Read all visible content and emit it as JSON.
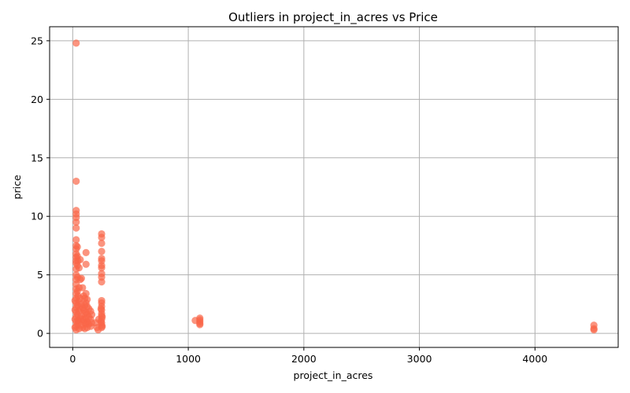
{
  "chart_data": {
    "type": "scatter",
    "title": "Outliers in project_in_acres vs Price",
    "xlabel": "project_in_acres",
    "ylabel": "price",
    "xlim": [
      -200,
      4720
    ],
    "ylim": [
      -1.2,
      26.2
    ],
    "xticks": [
      0,
      1000,
      2000,
      3000,
      4000
    ],
    "yticks": [
      0,
      5,
      10,
      15,
      20,
      25
    ],
    "grid": true,
    "color": "#fa6648",
    "points": [
      [
        30,
        24.8
      ],
      [
        30,
        13.0
      ],
      [
        30,
        10.5
      ],
      [
        30,
        10.2
      ],
      [
        30,
        9.9
      ],
      [
        30,
        9.5
      ],
      [
        30,
        9.0
      ],
      [
        30,
        8.0
      ],
      [
        30,
        7.5
      ],
      [
        30,
        7.2
      ],
      [
        30,
        6.8
      ],
      [
        30,
        6.5
      ],
      [
        30,
        6.2
      ],
      [
        30,
        6.0
      ],
      [
        30,
        5.5
      ],
      [
        30,
        5.0
      ],
      [
        30,
        4.6
      ],
      [
        30,
        4.2
      ],
      [
        30,
        3.8
      ],
      [
        30,
        3.4
      ],
      [
        30,
        3.0
      ],
      [
        30,
        2.6
      ],
      [
        30,
        2.2
      ],
      [
        30,
        1.8
      ],
      [
        30,
        1.4
      ],
      [
        30,
        1.0
      ],
      [
        30,
        0.6
      ],
      [
        30,
        0.3
      ],
      [
        20,
        2.8
      ],
      [
        20,
        2.0
      ],
      [
        20,
        1.2
      ],
      [
        20,
        0.5
      ],
      [
        40,
        7.4
      ],
      [
        40,
        6.6
      ],
      [
        40,
        5.8
      ],
      [
        40,
        4.8
      ],
      [
        40,
        3.6
      ],
      [
        40,
        2.4
      ],
      [
        40,
        1.6
      ],
      [
        40,
        0.8
      ],
      [
        45,
        6.2
      ],
      [
        45,
        3.2
      ],
      [
        45,
        1.1
      ],
      [
        55,
        5.6
      ],
      [
        55,
        3.9
      ],
      [
        55,
        2.7
      ],
      [
        55,
        1.9
      ],
      [
        55,
        1.0
      ],
      [
        55,
        0.4
      ],
      [
        65,
        6.3
      ],
      [
        65,
        4.6
      ],
      [
        65,
        3.0
      ],
      [
        65,
        2.1
      ],
      [
        65,
        1.3
      ],
      [
        75,
        4.7
      ],
      [
        75,
        2.5
      ],
      [
        75,
        1.5
      ],
      [
        75,
        0.7
      ],
      [
        85,
        3.9
      ],
      [
        85,
        2.2
      ],
      [
        85,
        1.2
      ],
      [
        85,
        0.5
      ],
      [
        95,
        3.2
      ],
      [
        95,
        2.0
      ],
      [
        95,
        1.1
      ],
      [
        105,
        3.0
      ],
      [
        105,
        2.4
      ],
      [
        105,
        1.7
      ],
      [
        105,
        0.9
      ],
      [
        105,
        0.4
      ],
      [
        115,
        6.9
      ],
      [
        115,
        5.9
      ],
      [
        115,
        3.4
      ],
      [
        115,
        2.6
      ],
      [
        115,
        1.8
      ],
      [
        115,
        1.3
      ],
      [
        115,
        0.8
      ],
      [
        125,
        2.9
      ],
      [
        125,
        2.3
      ],
      [
        125,
        1.6
      ],
      [
        125,
        1.0
      ],
      [
        125,
        0.5
      ],
      [
        140,
        2.1
      ],
      [
        140,
        1.4
      ],
      [
        140,
        0.8
      ],
      [
        155,
        1.9
      ],
      [
        155,
        1.2
      ],
      [
        155,
        0.6
      ],
      [
        165,
        1.6
      ],
      [
        165,
        0.9
      ],
      [
        200,
        0.9
      ],
      [
        210,
        0.5
      ],
      [
        220,
        0.3
      ],
      [
        225,
        1.2
      ],
      [
        250,
        8.5
      ],
      [
        250,
        8.2
      ],
      [
        250,
        7.7
      ],
      [
        250,
        7.0
      ],
      [
        250,
        6.4
      ],
      [
        250,
        6.2
      ],
      [
        250,
        5.8
      ],
      [
        250,
        5.6
      ],
      [
        250,
        5.1
      ],
      [
        250,
        4.8
      ],
      [
        250,
        4.4
      ],
      [
        250,
        2.8
      ],
      [
        250,
        2.6
      ],
      [
        250,
        2.3
      ],
      [
        250,
        2.0
      ],
      [
        250,
        1.7
      ],
      [
        250,
        1.5
      ],
      [
        250,
        1.2
      ],
      [
        250,
        0.9
      ],
      [
        250,
        0.7
      ],
      [
        250,
        0.5
      ],
      [
        245,
        2.1
      ],
      [
        245,
        1.0
      ],
      [
        255,
        1.4
      ],
      [
        255,
        0.6
      ],
      [
        1060,
        1.1
      ],
      [
        1100,
        1.3
      ],
      [
        1100,
        1.15
      ],
      [
        1100,
        1.0
      ],
      [
        1100,
        0.85
      ],
      [
        1100,
        0.75
      ],
      [
        4510,
        0.7
      ],
      [
        4510,
        0.4
      ],
      [
        4510,
        0.3
      ]
    ]
  }
}
